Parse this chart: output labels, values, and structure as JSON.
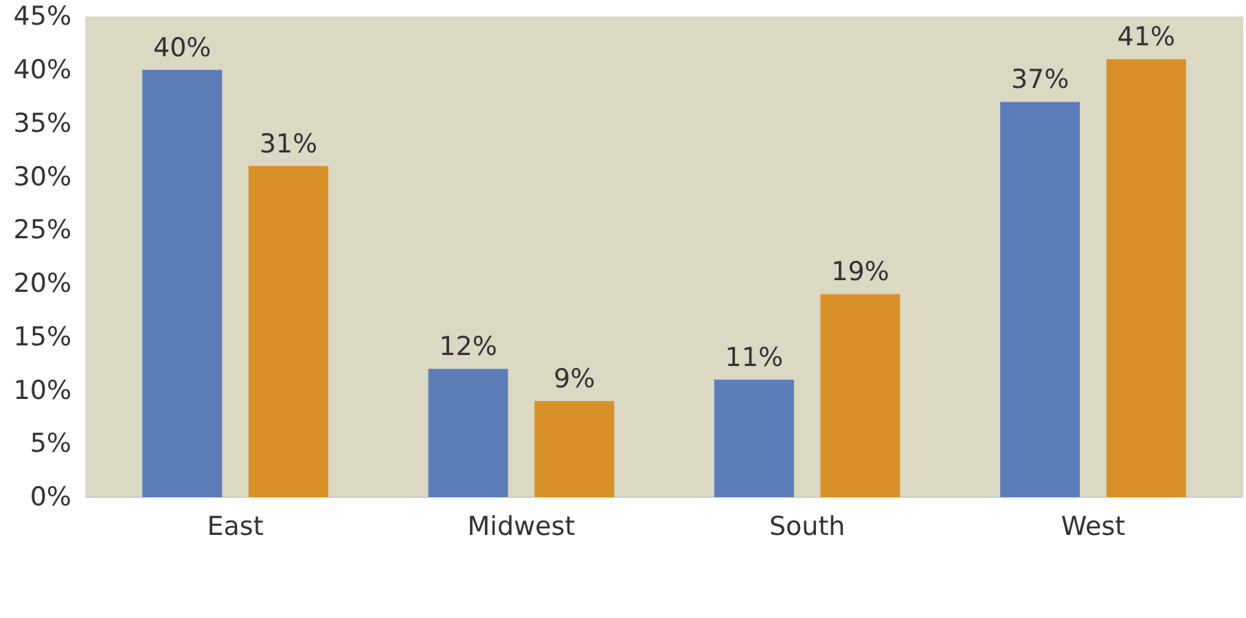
{
  "chart_data": {
    "type": "bar",
    "categories": [
      "East",
      "Midwest",
      "South",
      "West"
    ],
    "series": [
      {
        "color": "#5b7db8",
        "values": [
          40,
          12,
          11,
          37
        ],
        "value_labels": [
          "40%",
          "12%",
          "11%",
          "37%"
        ]
      },
      {
        "color": "#d89128",
        "values": [
          31,
          9,
          19,
          41
        ],
        "value_labels": [
          "31%",
          "9%",
          "19%",
          "41%"
        ]
      }
    ],
    "ylim": [
      0,
      45
    ],
    "yticks": [
      {
        "value": 0,
        "label": "0%"
      },
      {
        "value": 5,
        "label": "5%"
      },
      {
        "value": 10,
        "label": "10%"
      },
      {
        "value": 15,
        "label": "15%"
      },
      {
        "value": 20,
        "label": "20%"
      },
      {
        "value": 25,
        "label": "25%"
      },
      {
        "value": 30,
        "label": "30%"
      },
      {
        "value": 35,
        "label": "35%"
      },
      {
        "value": 40,
        "label": "40%"
      },
      {
        "value": 45,
        "label": "45%"
      }
    ],
    "grid": false
  }
}
